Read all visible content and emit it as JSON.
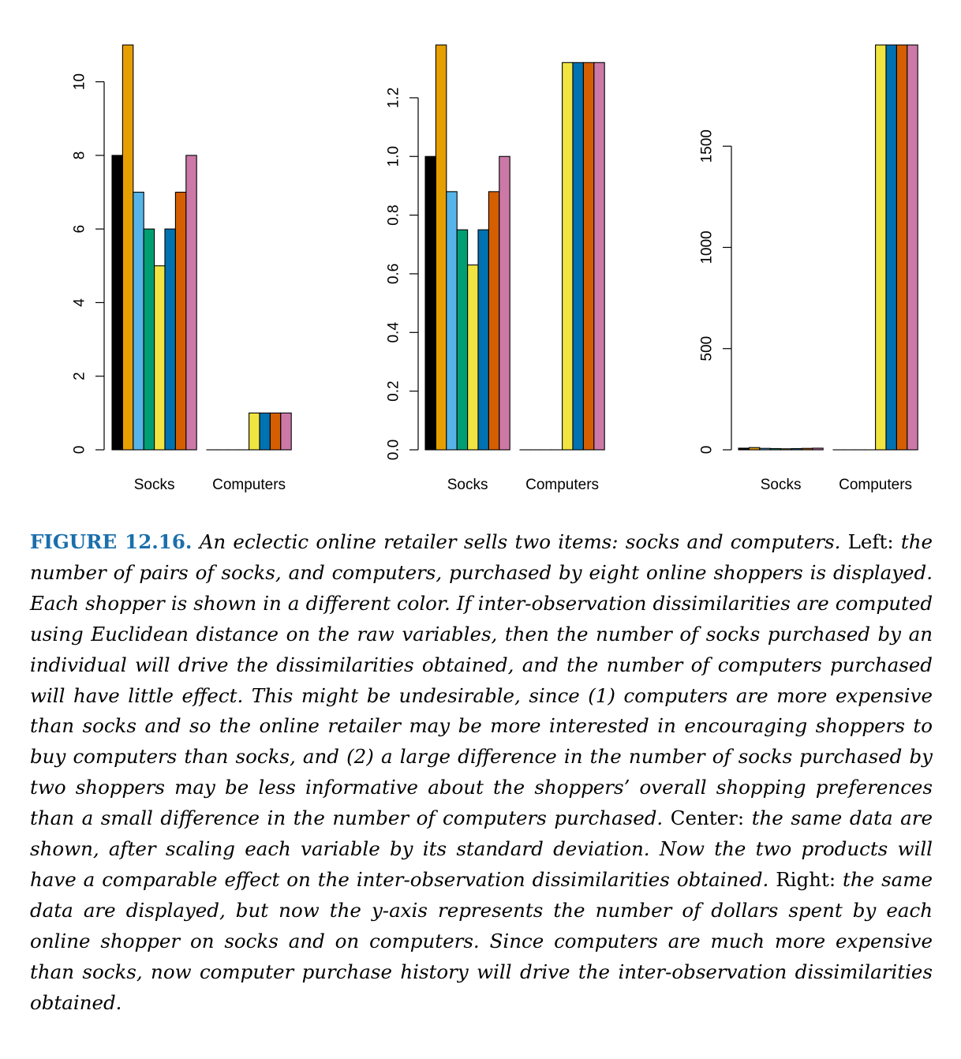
{
  "chart_data": [
    {
      "type": "bar",
      "categories": [
        "Socks",
        "Computers"
      ],
      "ylim": [
        0,
        11
      ],
      "yticks": [
        0,
        2,
        4,
        6,
        8,
        10
      ],
      "ytick_labels": [
        "0",
        "2",
        "4",
        "6",
        "8",
        "10"
      ],
      "series": [
        {
          "color": "#000000",
          "values": [
            8,
            0
          ]
        },
        {
          "color": "#E69F00",
          "values": [
            11,
            0
          ]
        },
        {
          "color": "#56B4E9",
          "values": [
            7,
            0
          ]
        },
        {
          "color": "#009E73",
          "values": [
            6,
            0
          ]
        },
        {
          "color": "#F0E442",
          "values": [
            5,
            1
          ]
        },
        {
          "color": "#0072B2",
          "values": [
            6,
            1
          ]
        },
        {
          "color": "#D55E00",
          "values": [
            7,
            1
          ]
        },
        {
          "color": "#CC79A7",
          "values": [
            8,
            1
          ]
        }
      ]
    },
    {
      "type": "bar",
      "categories": [
        "Socks",
        "Computers"
      ],
      "ylim": [
        0,
        1.38
      ],
      "yticks": [
        0,
        0.2,
        0.4,
        0.6,
        0.8,
        1.0,
        1.2
      ],
      "ytick_labels": [
        "0.0",
        "0.2",
        "0.4",
        "0.6",
        "0.8",
        "1.0",
        "1.2"
      ],
      "series": [
        {
          "color": "#000000",
          "values": [
            1.0,
            0
          ]
        },
        {
          "color": "#E69F00",
          "values": [
            1.38,
            0
          ]
        },
        {
          "color": "#56B4E9",
          "values": [
            0.88,
            0
          ]
        },
        {
          "color": "#009E73",
          "values": [
            0.75,
            0
          ]
        },
        {
          "color": "#F0E442",
          "values": [
            0.63,
            1.32
          ]
        },
        {
          "color": "#0072B2",
          "values": [
            0.75,
            1.32
          ]
        },
        {
          "color": "#D55E00",
          "values": [
            0.88,
            1.32
          ]
        },
        {
          "color": "#CC79A7",
          "values": [
            1.0,
            1.32
          ]
        }
      ]
    },
    {
      "type": "bar",
      "categories": [
        "Socks",
        "Computers"
      ],
      "ylim": [
        0,
        2000
      ],
      "yticks": [
        0,
        500,
        1000,
        1500
      ],
      "ytick_labels": [
        "0",
        "500",
        "1000",
        "1500"
      ],
      "series": [
        {
          "color": "#000000",
          "values": [
            8,
            0
          ]
        },
        {
          "color": "#E69F00",
          "values": [
            11,
            0
          ]
        },
        {
          "color": "#56B4E9",
          "values": [
            7,
            0
          ]
        },
        {
          "color": "#009E73",
          "values": [
            6,
            0
          ]
        },
        {
          "color": "#F0E442",
          "values": [
            5,
            2000
          ]
        },
        {
          "color": "#0072B2",
          "values": [
            6,
            2000
          ]
        },
        {
          "color": "#D55E00",
          "values": [
            7,
            2000
          ]
        },
        {
          "color": "#CC79A7",
          "values": [
            8,
            2000
          ]
        }
      ]
    }
  ],
  "caption": {
    "label": "FIGURE 12.16.",
    "s1": "An eclectic online retailer sells two items: socks and computers.",
    "left_word": "Left:",
    "s2": "the number of pairs of socks, and computers, purchased by eight online shoppers is displayed. Each shopper is shown in a different color. If inter-observation dissimilarities are computed using Euclidean distance on the raw variables, then the number of socks purchased by an individual will drive the dissimilarities obtained, and the number of computers purchased will have little effect. This might be undesirable, since (1) computers are more expensive than socks and so the online retailer may be more interested in encouraging shoppers to buy computers than socks, and (2) a large difference in the number of socks purchased by two shoppers may be less informative about the shoppers’ overall shopping preferences than a small difference in the number of computers purchased.",
    "center_word": "Center:",
    "s3": "the same data are shown, after scaling each variable by its standard deviation. Now the two products will have a comparable effect on the inter-observation dissimilarities obtained.",
    "right_word": "Right:",
    "s4": "the same data are displayed, but now the y-axis represents the number of dollars spent by each online shopper on socks and on computers. Since computers are much more expensive than socks, now computer purchase history will drive the inter-observation dissimilarities obtained."
  }
}
